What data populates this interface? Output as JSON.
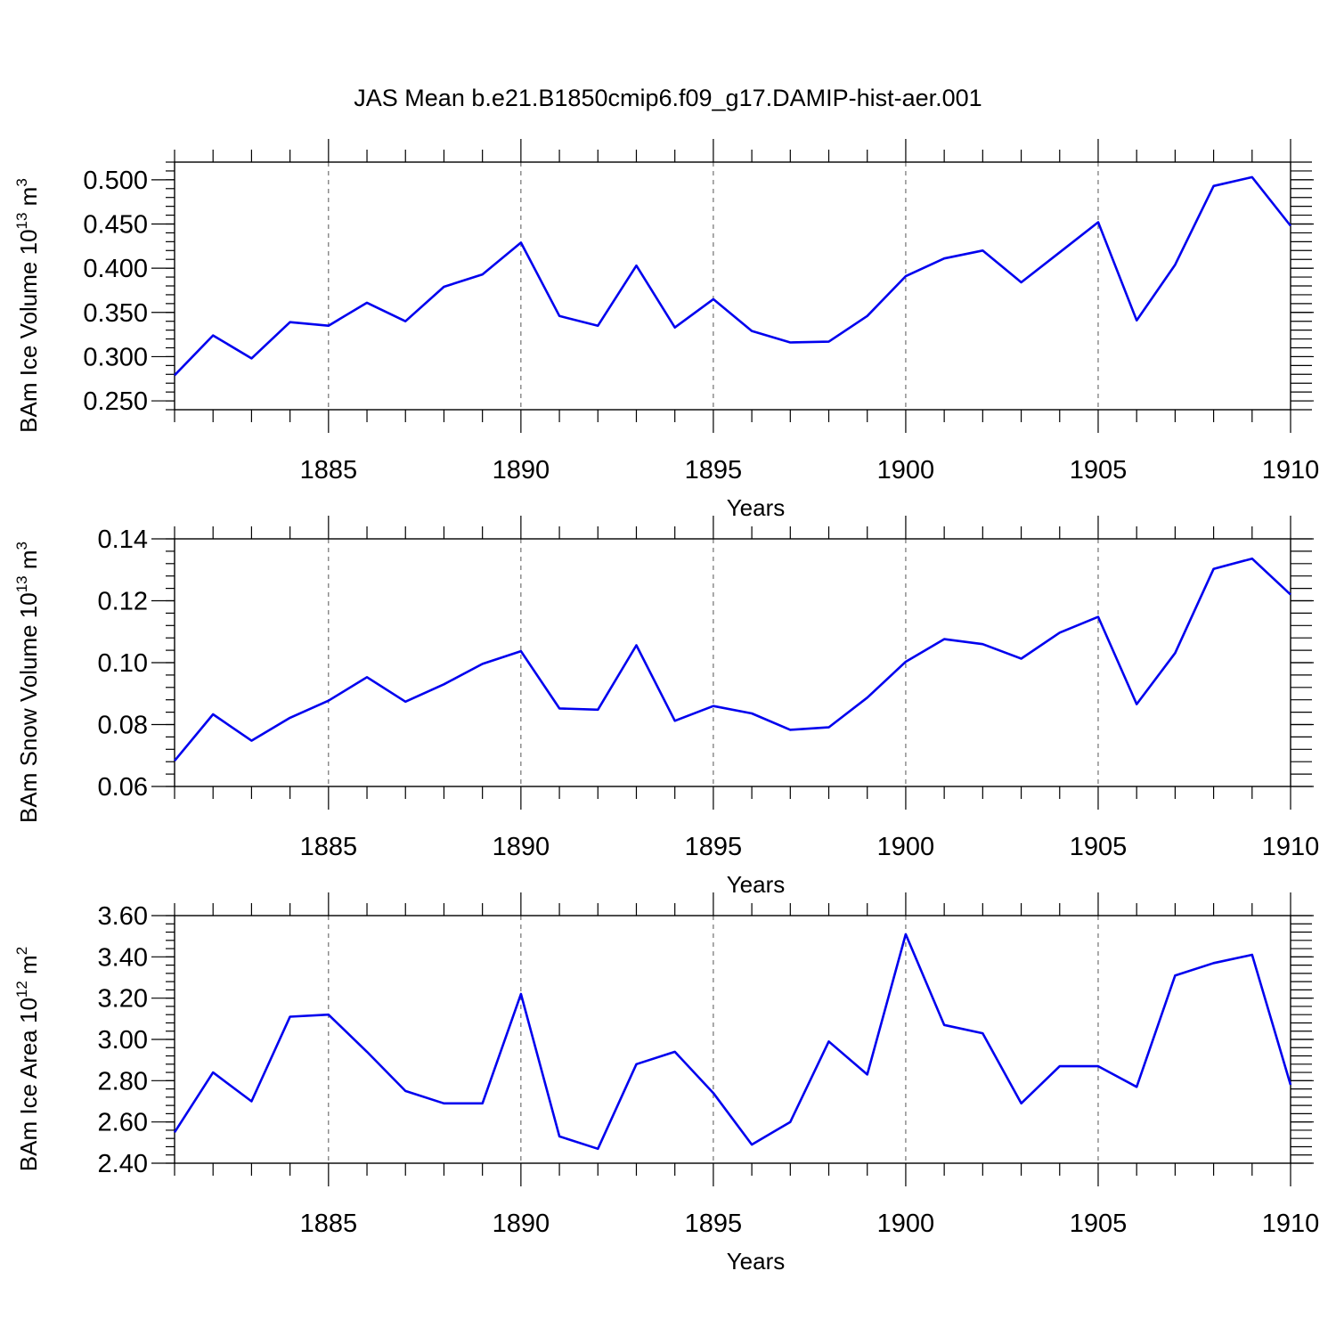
{
  "figure": {
    "title": "JAS Mean b.e21.B1850cmip6.f09_g17.DAMIP-hist-aer.001"
  },
  "chart_data": [
    {
      "type": "line",
      "title": "",
      "xlabel": "Years",
      "ylabel_main": "BAm Ice Volume 10",
      "ylabel_exp": "13",
      "ylabel_unit": " m",
      "ylabel_unit_exp": "3",
      "xlim": [
        1881,
        1910
      ],
      "ylim": [
        0.24,
        0.52
      ],
      "xticks": [
        1885,
        1890,
        1895,
        1900,
        1905,
        1910
      ],
      "xtick_labels": [
        "1885",
        "1890",
        "1895",
        "1900",
        "1905",
        "1910"
      ],
      "yticks": [
        0.25,
        0.3,
        0.35,
        0.4,
        0.45,
        0.5
      ],
      "ytick_labels": [
        "0.250",
        "0.300",
        "0.350",
        "0.400",
        "0.450",
        "0.500"
      ],
      "yminor_step": 0.01,
      "grid_x_dashed": true,
      "color": "#0000ee",
      "x": [
        1881,
        1882,
        1883,
        1884,
        1885,
        1886,
        1887,
        1888,
        1889,
        1890,
        1891,
        1892,
        1893,
        1894,
        1895,
        1896,
        1897,
        1898,
        1899,
        1900,
        1901,
        1902,
        1903,
        1904,
        1905,
        1906,
        1907,
        1908,
        1909,
        1910
      ],
      "values": [
        0.279,
        0.324,
        0.298,
        0.339,
        0.335,
        0.361,
        0.34,
        0.379,
        0.393,
        0.429,
        0.346,
        0.335,
        0.403,
        0.333,
        0.365,
        0.329,
        0.316,
        0.317,
        0.346,
        0.391,
        0.411,
        0.42,
        0.384,
        0.418,
        0.452,
        0.341,
        0.404,
        0.493,
        0.503,
        0.448
      ]
    },
    {
      "type": "line",
      "title": "",
      "xlabel": "Years",
      "ylabel_main": "BAm Snow Volume 10",
      "ylabel_exp": "13",
      "ylabel_unit": " m",
      "ylabel_unit_exp": "3",
      "xlim": [
        1881,
        1910
      ],
      "ylim": [
        0.06,
        0.14
      ],
      "xticks": [
        1885,
        1890,
        1895,
        1900,
        1905,
        1910
      ],
      "xtick_labels": [
        "1885",
        "1890",
        "1895",
        "1900",
        "1905",
        "1910"
      ],
      "yticks": [
        0.06,
        0.08,
        0.1,
        0.12,
        0.14
      ],
      "ytick_labels": [
        "0.06",
        "0.08",
        "0.10",
        "0.12",
        "0.14"
      ],
      "yminor_step": 0.004,
      "grid_x_dashed": true,
      "color": "#0000ee",
      "x": [
        1881,
        1882,
        1883,
        1884,
        1885,
        1886,
        1887,
        1888,
        1889,
        1890,
        1891,
        1892,
        1893,
        1894,
        1895,
        1896,
        1897,
        1898,
        1899,
        1900,
        1901,
        1902,
        1903,
        1904,
        1905,
        1906,
        1907,
        1908,
        1909,
        1910
      ],
      "values": [
        0.0683,
        0.0833,
        0.0748,
        0.0822,
        0.0877,
        0.0953,
        0.0874,
        0.093,
        0.0996,
        0.1037,
        0.0852,
        0.0848,
        0.1056,
        0.0812,
        0.086,
        0.0836,
        0.0783,
        0.0791,
        0.0887,
        0.1003,
        0.1076,
        0.106,
        0.1013,
        0.1097,
        0.1148,
        0.0866,
        0.1031,
        0.1303,
        0.1336,
        0.122
      ]
    },
    {
      "type": "line",
      "title": "",
      "xlabel": "Years",
      "ylabel_main": "BAm Ice Area 10",
      "ylabel_exp": "12",
      "ylabel_unit": " m",
      "ylabel_unit_exp": "2",
      "xlim": [
        1881,
        1910
      ],
      "ylim": [
        2.4,
        3.6
      ],
      "xticks": [
        1885,
        1890,
        1895,
        1900,
        1905,
        1910
      ],
      "xtick_labels": [
        "1885",
        "1890",
        "1895",
        "1900",
        "1905",
        "1910"
      ],
      "yticks": [
        2.4,
        2.6,
        2.8,
        3.0,
        3.2,
        3.4,
        3.6
      ],
      "ytick_labels": [
        "2.40",
        "2.60",
        "2.80",
        "3.00",
        "3.20",
        "3.40",
        "3.60"
      ],
      "yminor_step": 0.04,
      "grid_x_dashed": true,
      "color": "#0000ee",
      "x": [
        1881,
        1882,
        1883,
        1884,
        1885,
        1886,
        1887,
        1888,
        1889,
        1890,
        1891,
        1892,
        1893,
        1894,
        1895,
        1896,
        1897,
        1898,
        1899,
        1900,
        1901,
        1902,
        1903,
        1904,
        1905,
        1906,
        1907,
        1908,
        1909,
        1910
      ],
      "values": [
        2.55,
        2.84,
        2.7,
        3.11,
        3.12,
        2.94,
        2.75,
        2.69,
        2.69,
        3.22,
        2.53,
        2.47,
        2.88,
        2.94,
        2.74,
        2.49,
        2.6,
        2.99,
        2.83,
        3.51,
        3.07,
        3.03,
        2.69,
        2.87,
        2.87,
        2.77,
        3.31,
        3.37,
        3.41,
        2.78
      ]
    }
  ]
}
